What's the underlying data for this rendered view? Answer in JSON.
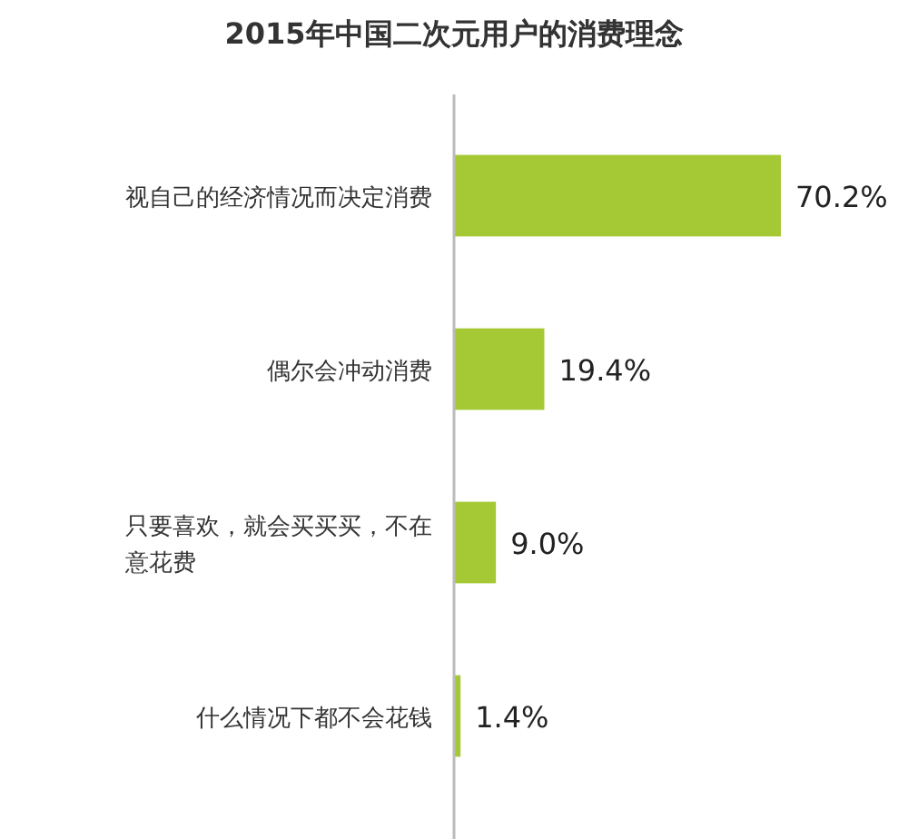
{
  "chart_data": {
    "type": "bar",
    "orientation": "horizontal",
    "title": "2015年中国二次元用户的消费理念",
    "categories": [
      "视自己的经济情况而决定消费",
      "偶尔会冲动消费",
      "只要喜欢，就会买买买，不在意花费",
      "什么情况下都不会花钱"
    ],
    "values": [
      70.2,
      19.4,
      9.0,
      1.4
    ],
    "color": "#a5c934",
    "value_labels": [
      "70.2%",
      "19.4%",
      "9.0%",
      "1.4%"
    ]
  }
}
